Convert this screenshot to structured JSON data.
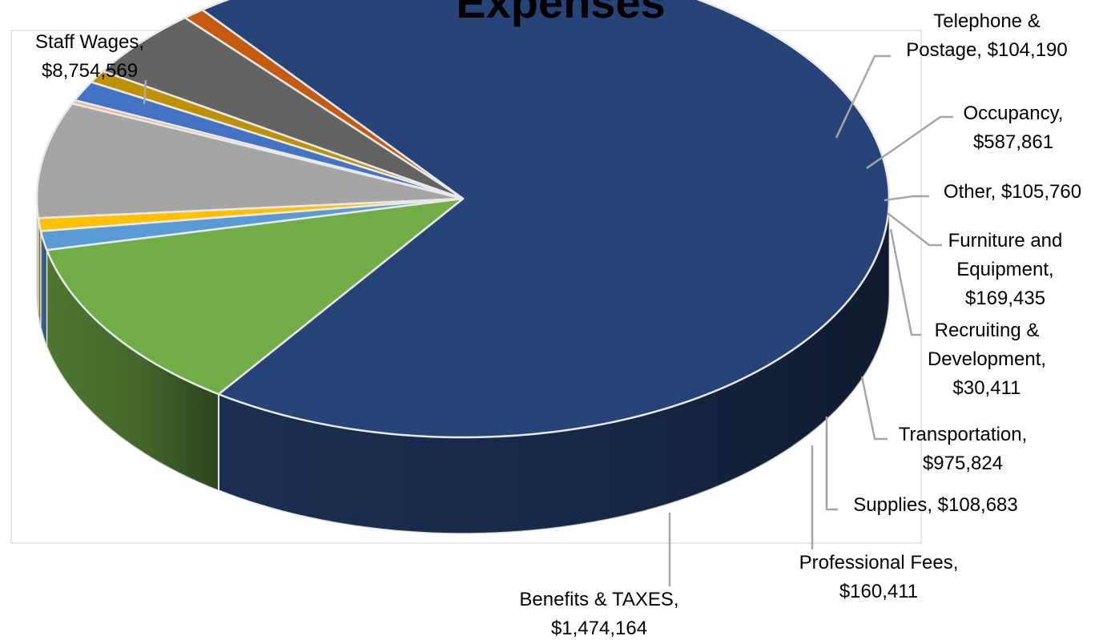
{
  "chart_data": {
    "type": "pie",
    "title": "Expenses",
    "slices": [
      {
        "label": "Staff Wages",
        "value": 8754569,
        "value_text": "$8,754,569",
        "color": "#264478"
      },
      {
        "label": "Telephone & Postage",
        "value": 104190,
        "value_text": "$104,190",
        "color": "#c55a11"
      },
      {
        "label": "Occupancy",
        "value": 587861,
        "value_text": "$587,861",
        "color": "#636363"
      },
      {
        "label": "Other",
        "value": 105760,
        "value_text": "$105,760",
        "color": "#bf9000"
      },
      {
        "label": "Furniture and Equipment",
        "value": 169435,
        "value_text": "$169,435",
        "color": "#4472c4"
      },
      {
        "label": "Recruiting & Development",
        "value": 30411,
        "value_text": "$30,411",
        "color": "#f4b183"
      },
      {
        "label": "Transportation",
        "value": 975824,
        "value_text": "$975,824",
        "color": "#a5a5a5"
      },
      {
        "label": "Supplies",
        "value": 108683,
        "value_text": "$108,683",
        "color": "#ffc000"
      },
      {
        "label": "Professional Fees",
        "value": 160411,
        "value_text": "$160,411",
        "color": "#5b9bd5"
      },
      {
        "label": "Benefits & TAXES",
        "value": 1474164,
        "value_text": "$1,474,164",
        "color": "#70ad47"
      }
    ],
    "legend": "none",
    "style": "3d-pie",
    "data_labels": "category, value"
  }
}
